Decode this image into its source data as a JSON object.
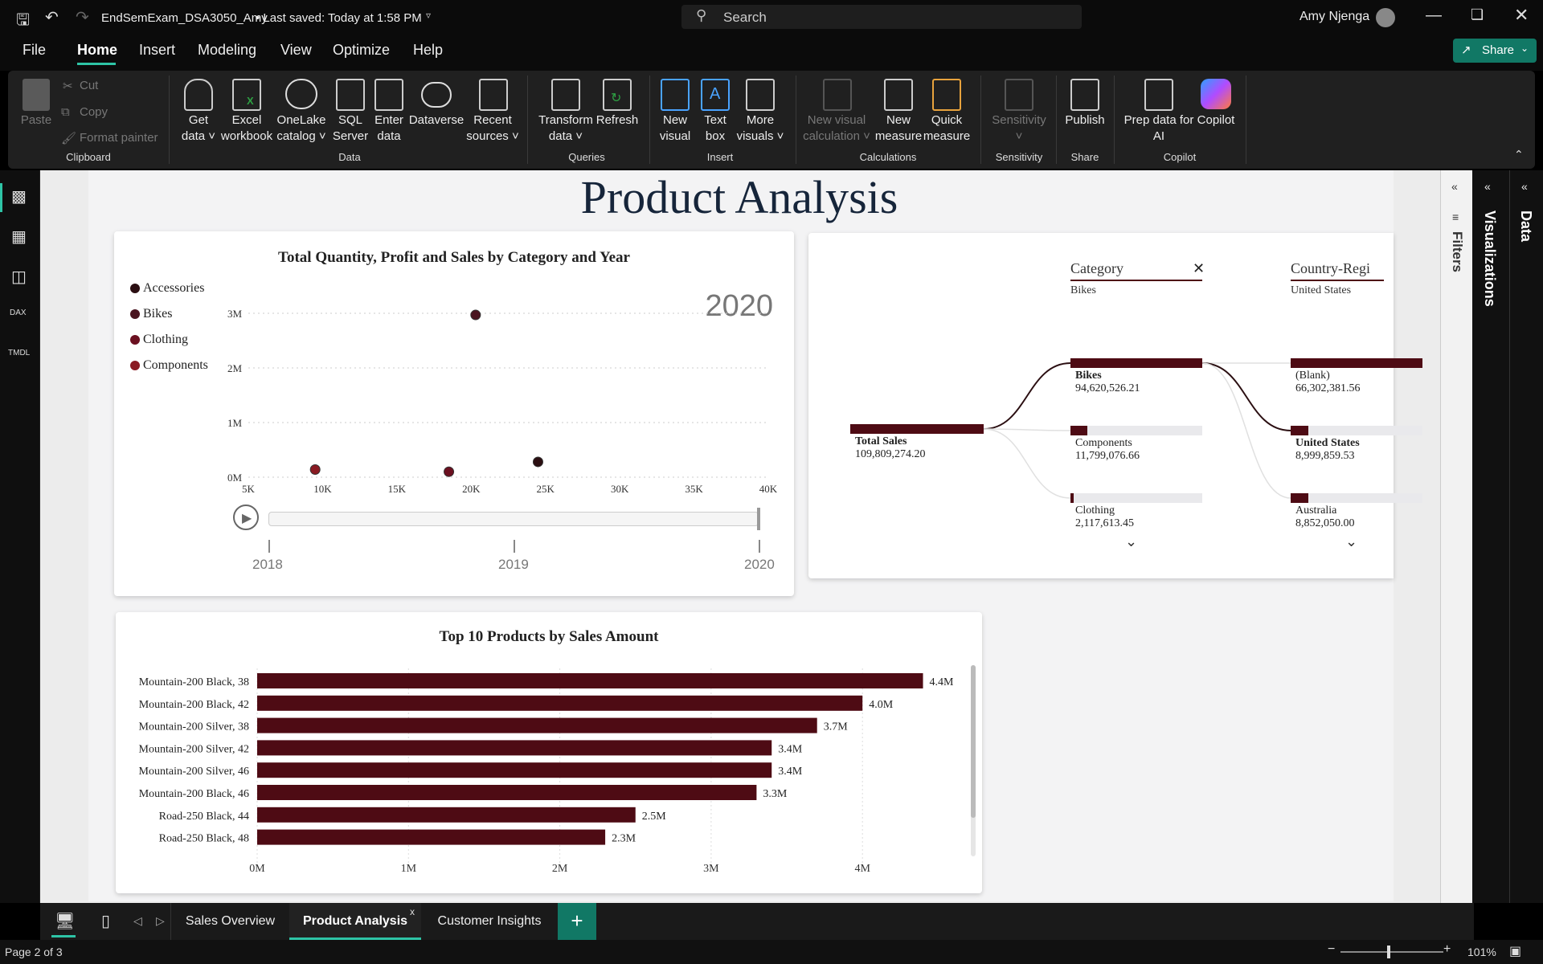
{
  "titlebar": {
    "file_name": "EndSemExam_DSA3050_Amy",
    "saved_status": "• Last saved: Today at 1:58 PM",
    "search_placeholder": "Search",
    "user_name": "Amy Njenga"
  },
  "menu": {
    "items": [
      "File",
      "Home",
      "Insert",
      "Modeling",
      "View",
      "Optimize",
      "Help"
    ],
    "active": "Home",
    "share_label": "Share"
  },
  "ribbon": {
    "clipboard": {
      "paste": "Paste",
      "cut": "Cut",
      "copy": "Copy",
      "format_painter": "Format painter",
      "group": "Clipboard"
    },
    "data": {
      "get_data": [
        "Get",
        "data"
      ],
      "excel": [
        "Excel",
        "workbook"
      ],
      "onelake": [
        "OneLake",
        "catalog"
      ],
      "sql": [
        "SQL",
        "Server"
      ],
      "enter": [
        "Enter",
        "data"
      ],
      "dataverse": "Dataverse",
      "recent": [
        "Recent",
        "sources"
      ],
      "group": "Data"
    },
    "queries": {
      "transform": [
        "Transform",
        "data"
      ],
      "refresh": "Refresh",
      "group": "Queries"
    },
    "insert": {
      "new_visual": [
        "New",
        "visual"
      ],
      "text_box": [
        "Text",
        "box"
      ],
      "more_visuals": [
        "More",
        "visuals"
      ],
      "group": "Insert"
    },
    "calculations": {
      "new_visual_calc": [
        "New visual",
        "calculation"
      ],
      "new_measure": [
        "New",
        "measure"
      ],
      "quick_measure": [
        "Quick",
        "measure"
      ],
      "group": "Calculations"
    },
    "sensitivity": {
      "label": "Sensitivity",
      "group": "Sensitivity"
    },
    "share": {
      "publish": "Publish",
      "group": "Share"
    },
    "copilot": {
      "prep": [
        "Prep data for",
        "AI"
      ],
      "copilot": "Copilot",
      "group": "Copilot"
    }
  },
  "right_panes": {
    "filters": "Filters",
    "visualizations": "Visualizations",
    "data": "Data"
  },
  "page_title": "Product Analysis",
  "scatter": {
    "title": "Total Quantity, Profit and Sales by Category and Year",
    "year_label": "2020",
    "legend": [
      {
        "name": "Accessories",
        "color": "#2b0f12"
      },
      {
        "name": "Bikes",
        "color": "#4a1520"
      },
      {
        "name": "Clothing",
        "color": "#6b1020"
      },
      {
        "name": "Components",
        "color": "#8a1a22"
      }
    ],
    "play_axis_years": [
      "2018",
      "2019",
      "2020"
    ]
  },
  "decomp": {
    "col1_header": "Category",
    "col1_sub": "Bikes",
    "col2_header": "Country-Regi",
    "col2_sub": "United States",
    "root_label": "Total Sales",
    "root_value": "109,809,274.20",
    "col1": [
      {
        "label": "Bikes",
        "value": "94,620,526.21",
        "bold": true,
        "fill": 1.0
      },
      {
        "label": "Components",
        "value": "11,799,076.66",
        "bold": false,
        "fill": 0.125
      },
      {
        "label": "Clothing",
        "value": "2,117,613.45",
        "bold": false,
        "fill": 0.022
      }
    ],
    "col2": [
      {
        "label": "(Blank)",
        "value": "66,302,381.56",
        "bold": false,
        "fill": 1.0
      },
      {
        "label": "United States",
        "value": "8,999,859.53",
        "bold": true,
        "fill": 0.136
      },
      {
        "label": "Australia",
        "value": "8,852,050.00",
        "bold": false,
        "fill": 0.134
      }
    ]
  },
  "barchart": {
    "title": "Top 10 Products by Sales Amount"
  },
  "chart_data": [
    {
      "type": "scatter",
      "title": "Total Quantity, Profit and Sales by Category and Year",
      "x_ticks": [
        "5K",
        "10K",
        "15K",
        "20K",
        "25K",
        "30K",
        "35K",
        "40K"
      ],
      "y_ticks": [
        "0M",
        "1M",
        "2M",
        "3M"
      ],
      "xlim": [
        5000,
        40000
      ],
      "ylim": [
        0,
        3000000
      ],
      "points": [
        {
          "series": "Bikes",
          "x": 20300,
          "y": 2970000
        },
        {
          "series": "Accessories",
          "x": 24500,
          "y": 280000
        },
        {
          "series": "Components",
          "x": 9500,
          "y": 140000
        },
        {
          "series": "Clothing",
          "x": 18500,
          "y": 100000
        }
      ],
      "frame": "2020"
    },
    {
      "type": "bar",
      "orientation": "horizontal",
      "title": "Top 10 Products by Sales Amount",
      "categories": [
        "Mountain-200 Black, 38",
        "Mountain-200 Black, 42",
        "Mountain-200 Silver, 38",
        "Mountain-200 Silver, 42",
        "Mountain-200 Silver, 46",
        "Mountain-200 Black, 46",
        "Road-250 Black, 44",
        "Road-250 Black, 48"
      ],
      "values": [
        4.4,
        4.0,
        3.7,
        3.4,
        3.4,
        3.3,
        2.5,
        2.3
      ],
      "labels": [
        "4.4M",
        "4.0M",
        "3.7M",
        "3.4M",
        "3.4M",
        "3.3M",
        "2.5M",
        "2.3M"
      ],
      "x_ticks": [
        "0M",
        "1M",
        "2M",
        "3M",
        "4M"
      ],
      "xlim": [
        0,
        4.4
      ],
      "color": "#4e0b14"
    }
  ],
  "tabs": [
    "Sales Overview",
    "Product Analysis",
    "Customer Insights"
  ],
  "active_tab": "Product Analysis",
  "status": {
    "page": "Page 2 of 3",
    "zoom": "101%"
  }
}
